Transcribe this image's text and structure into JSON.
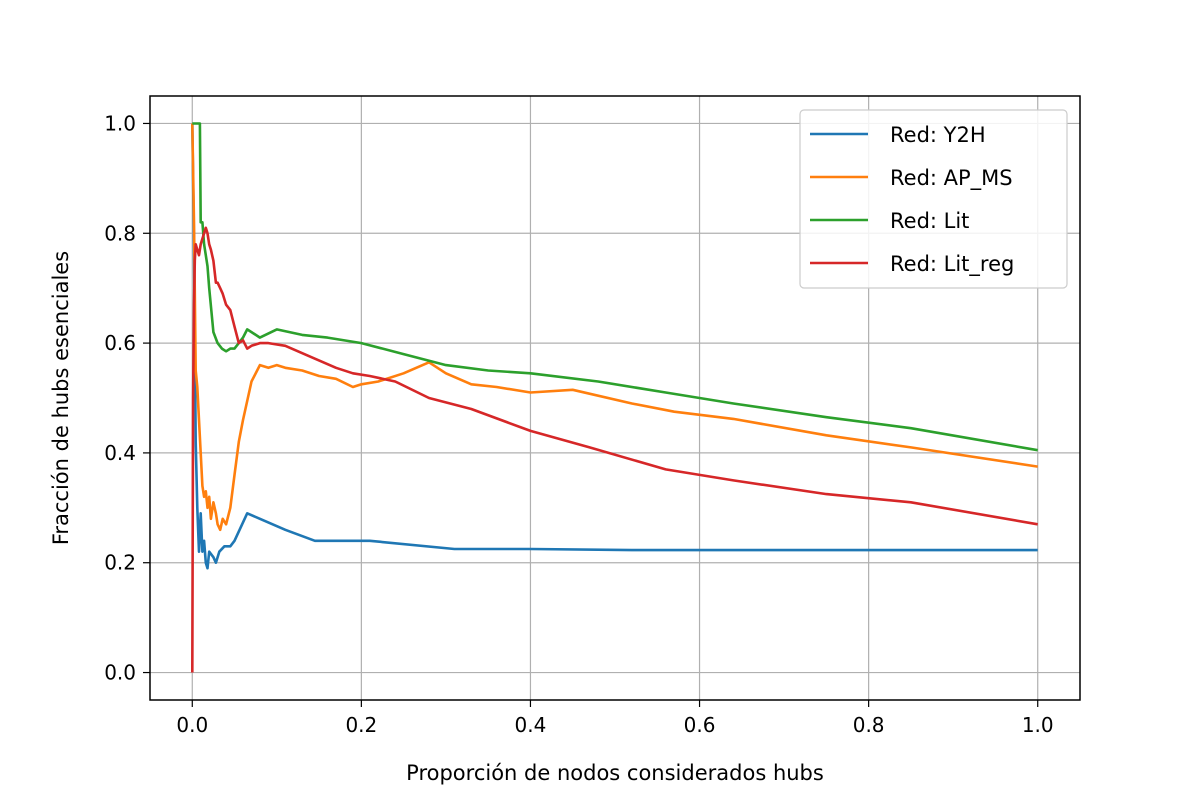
{
  "chart_data": {
    "type": "line",
    "title": "",
    "xlabel": "Proporción de nodos considerados hubs",
    "ylabel": "Fracción de hubs esenciales",
    "xlim": [
      -0.05,
      1.05
    ],
    "ylim": [
      -0.05,
      1.05
    ],
    "xticks": [
      0.0,
      0.2,
      0.4,
      0.6,
      0.8,
      1.0
    ],
    "xtick_labels": [
      "0.0",
      "0.2",
      "0.4",
      "0.6",
      "0.8",
      "1.0"
    ],
    "yticks": [
      0.0,
      0.2,
      0.4,
      0.6,
      0.8,
      1.0
    ],
    "ytick_labels": [
      "0.0",
      "0.2",
      "0.4",
      "0.6",
      "0.8",
      "1.0"
    ],
    "grid": true,
    "legend_position": "top-right",
    "series": [
      {
        "name": "Red: Y2H",
        "color": "#1f77b4",
        "x": [
          0.0,
          0.002,
          0.004,
          0.006,
          0.008,
          0.01,
          0.012,
          0.014,
          0.016,
          0.018,
          0.02,
          0.025,
          0.028,
          0.032,
          0.038,
          0.045,
          0.05,
          0.065,
          0.08,
          0.11,
          0.145,
          0.21,
          0.31,
          0.4,
          0.52,
          0.7,
          0.85,
          1.0
        ],
        "y": [
          1.0,
          0.78,
          0.42,
          0.3,
          0.22,
          0.29,
          0.22,
          0.24,
          0.2,
          0.19,
          0.22,
          0.21,
          0.2,
          0.22,
          0.23,
          0.23,
          0.24,
          0.29,
          0.28,
          0.26,
          0.24,
          0.24,
          0.225,
          0.225,
          0.223,
          0.223,
          0.223,
          0.223
        ]
      },
      {
        "name": "Red: AP_MS",
        "color": "#ff7f0e",
        "x": [
          0.0,
          0.002,
          0.004,
          0.006,
          0.008,
          0.01,
          0.012,
          0.014,
          0.016,
          0.018,
          0.02,
          0.022,
          0.025,
          0.028,
          0.03,
          0.033,
          0.036,
          0.04,
          0.045,
          0.05,
          0.055,
          0.06,
          0.07,
          0.08,
          0.09,
          0.1,
          0.11,
          0.13,
          0.15,
          0.17,
          0.19,
          0.2,
          0.22,
          0.25,
          0.28,
          0.3,
          0.33,
          0.36,
          0.4,
          0.45,
          0.52,
          0.57,
          0.64,
          0.75,
          0.85,
          1.0
        ],
        "y": [
          1.0,
          0.82,
          0.55,
          0.52,
          0.46,
          0.4,
          0.34,
          0.32,
          0.33,
          0.3,
          0.32,
          0.28,
          0.31,
          0.29,
          0.27,
          0.26,
          0.28,
          0.27,
          0.3,
          0.36,
          0.42,
          0.46,
          0.53,
          0.56,
          0.555,
          0.56,
          0.555,
          0.55,
          0.54,
          0.535,
          0.52,
          0.525,
          0.53,
          0.545,
          0.565,
          0.545,
          0.525,
          0.52,
          0.51,
          0.515,
          0.49,
          0.475,
          0.462,
          0.432,
          0.41,
          0.375
        ]
      },
      {
        "name": "Red: Lit",
        "color": "#2ca02c",
        "x": [
          0.0,
          0.003,
          0.005,
          0.007,
          0.009,
          0.01,
          0.012,
          0.014,
          0.016,
          0.018,
          0.02,
          0.025,
          0.03,
          0.035,
          0.04,
          0.045,
          0.05,
          0.055,
          0.06,
          0.065,
          0.07,
          0.08,
          0.1,
          0.13,
          0.16,
          0.2,
          0.25,
          0.3,
          0.35,
          0.4,
          0.48,
          0.56,
          0.64,
          0.75,
          0.85,
          1.0
        ],
        "y": [
          1.0,
          1.0,
          1.0,
          1.0,
          1.0,
          0.82,
          0.82,
          0.78,
          0.76,
          0.74,
          0.7,
          0.62,
          0.6,
          0.59,
          0.585,
          0.59,
          0.59,
          0.6,
          0.61,
          0.625,
          0.62,
          0.61,
          0.625,
          0.615,
          0.61,
          0.6,
          0.58,
          0.56,
          0.55,
          0.545,
          0.53,
          0.51,
          0.49,
          0.465,
          0.445,
          0.405
        ]
      },
      {
        "name": "Red: Lit_reg",
        "color": "#d62728",
        "x": [
          0.0,
          0.001,
          0.002,
          0.003,
          0.004,
          0.006,
          0.008,
          0.01,
          0.012,
          0.014,
          0.016,
          0.018,
          0.02,
          0.022,
          0.025,
          0.028,
          0.03,
          0.033,
          0.036,
          0.04,
          0.045,
          0.05,
          0.055,
          0.06,
          0.065,
          0.07,
          0.08,
          0.09,
          0.11,
          0.14,
          0.17,
          0.19,
          0.21,
          0.24,
          0.28,
          0.33,
          0.4,
          0.47,
          0.56,
          0.64,
          0.75,
          0.85,
          1.0
        ],
        "y": [
          0.0,
          0.5,
          0.67,
          0.75,
          0.78,
          0.77,
          0.76,
          0.78,
          0.79,
          0.8,
          0.81,
          0.8,
          0.78,
          0.77,
          0.75,
          0.71,
          0.71,
          0.7,
          0.69,
          0.67,
          0.66,
          0.63,
          0.6,
          0.605,
          0.59,
          0.595,
          0.6,
          0.6,
          0.595,
          0.575,
          0.555,
          0.545,
          0.54,
          0.53,
          0.5,
          0.48,
          0.44,
          0.41,
          0.37,
          0.35,
          0.325,
          0.31,
          0.27
        ]
      }
    ]
  }
}
